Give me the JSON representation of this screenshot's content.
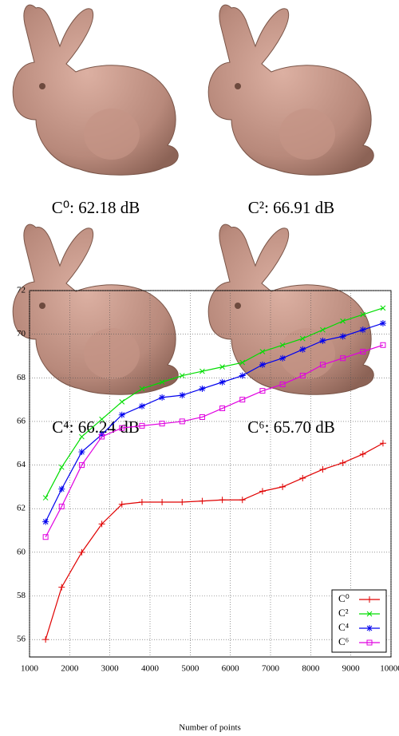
{
  "panels": [
    {
      "caption": "C⁰: 62.18 dB"
    },
    {
      "caption": "C²: 66.91 dB"
    },
    {
      "caption": "C⁴: 66.24 dB"
    },
    {
      "caption": "C⁶: 65.70 dB"
    }
  ],
  "chart_data": {
    "type": "line",
    "xlabel": "Number of points",
    "x": [
      1400,
      1800,
      2300,
      2800,
      3300,
      3800,
      4300,
      4800,
      5300,
      5800,
      6300,
      6800,
      7300,
      7800,
      8300,
      8800,
      9300,
      9800
    ],
    "series": [
      {
        "name": "C⁰",
        "color": "#e00000",
        "marker": "plus",
        "values": [
          56.0,
          58.4,
          60.0,
          61.3,
          62.2,
          62.3,
          62.3,
          62.3,
          62.35,
          62.4,
          62.4,
          62.8,
          63.0,
          63.4,
          63.8,
          64.1,
          64.5,
          65.0
        ]
      },
      {
        "name": "C²",
        "color": "#00dd00",
        "marker": "cross",
        "values": [
          62.5,
          63.9,
          65.3,
          66.1,
          66.9,
          67.5,
          67.8,
          68.1,
          68.3,
          68.5,
          68.7,
          69.2,
          69.5,
          69.8,
          70.2,
          70.6,
          70.9,
          71.2
        ]
      },
      {
        "name": "C⁴",
        "color": "#0000ee",
        "marker": "star",
        "values": [
          61.4,
          62.9,
          64.6,
          65.4,
          66.3,
          66.7,
          67.1,
          67.2,
          67.5,
          67.8,
          68.1,
          68.6,
          68.9,
          69.3,
          69.7,
          69.9,
          70.2,
          70.5
        ]
      },
      {
        "name": "C⁶",
        "color": "#e000e0",
        "marker": "square",
        "values": [
          60.7,
          62.1,
          64.0,
          65.3,
          65.7,
          65.8,
          65.9,
          66.0,
          66.2,
          66.6,
          67.0,
          67.4,
          67.7,
          68.1,
          68.6,
          68.9,
          69.2,
          69.5
        ]
      }
    ],
    "xlim": [
      1000,
      10000
    ],
    "xticks": [
      1000,
      2000,
      3000,
      4000,
      5000,
      6000,
      7000,
      8000,
      9000,
      10000
    ],
    "ylim": [
      55.2,
      72
    ],
    "yticks": [
      56,
      58,
      60,
      62,
      64,
      66,
      68,
      70,
      72
    ],
    "grid": true,
    "legend": "lower right"
  }
}
